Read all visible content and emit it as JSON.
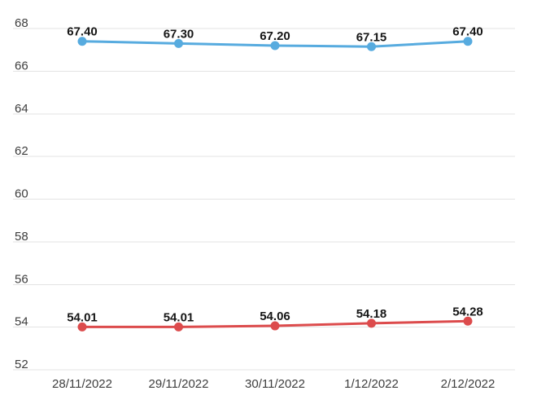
{
  "colors": {
    "background": "#ffffff",
    "grid": "#e3e3e3",
    "axis_text": "#3e3e3e",
    "point_label_text": "#161616",
    "series_upper": "#57abdf",
    "series_lower": "#dc4b4c"
  },
  "chart_data": {
    "type": "line",
    "title": "",
    "xlabel": "",
    "ylabel": "",
    "x": [
      "28/11/2022",
      "29/11/2022",
      "30/11/2022",
      "1/12/2022",
      "2/12/2022"
    ],
    "series": [
      {
        "name": "upper-series",
        "color": "#57abdf",
        "values": [
          67.4,
          67.3,
          67.2,
          67.15,
          67.4
        ],
        "point_labels": [
          "67.40",
          "67.30",
          "67.20",
          "67.15",
          "67.40"
        ]
      },
      {
        "name": "lower-series",
        "color": "#dc4b4c",
        "values": [
          54.01,
          54.01,
          54.06,
          54.18,
          54.28
        ],
        "point_labels": [
          "54.01",
          "54.01",
          "54.06",
          "54.18",
          "54.28"
        ]
      }
    ],
    "ylim": [
      52,
      68
    ],
    "yticks": [
      68,
      66,
      64,
      62,
      60,
      58,
      56,
      54,
      52
    ],
    "grid": true,
    "legend": "none",
    "point_labels_visible": true
  }
}
